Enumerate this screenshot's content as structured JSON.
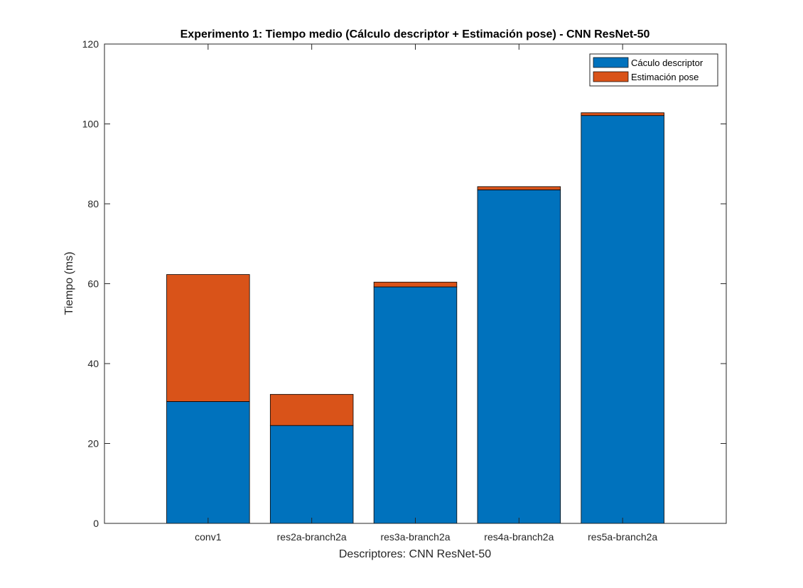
{
  "chart_data": {
    "type": "bar",
    "stacked": true,
    "title": "Experimento 1: Tiempo medio (Cálculo descriptor + Estimación pose) - CNN ResNet-50",
    "xlabel": "Descriptores: CNN ResNet-50",
    "ylabel": "Tiempo (ms)",
    "categories": [
      "conv1",
      "res2a-branch2a",
      "res3a-branch2a",
      "res4a-branch2a",
      "res5a-branch2a"
    ],
    "series": [
      {
        "name": "Cáculo descriptor",
        "color": "#0072BD",
        "values": [
          30.5,
          24.5,
          59.2,
          83.5,
          102.1
        ]
      },
      {
        "name": "Estimación pose",
        "color": "#D95319",
        "values": [
          31.8,
          7.8,
          1.2,
          0.8,
          0.7
        ]
      }
    ],
    "ylim": [
      0,
      120
    ],
    "xlim": [
      0,
      6
    ],
    "yticks": [
      0,
      20,
      40,
      60,
      80,
      100,
      120
    ],
    "grid": false,
    "legend_position": "top-right"
  }
}
